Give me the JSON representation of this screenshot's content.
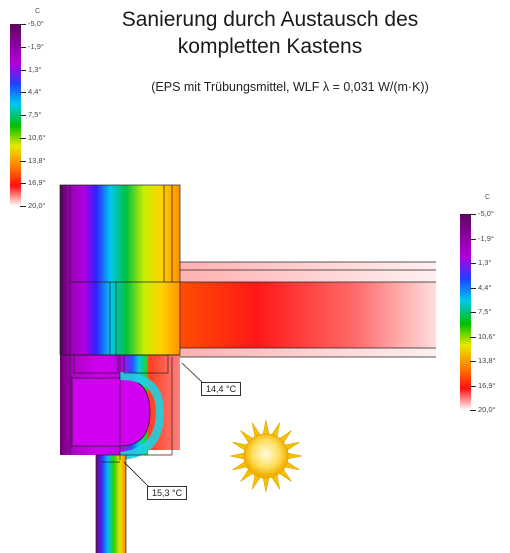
{
  "title": {
    "line1": "Sanierung durch Austausch des",
    "line2": "kompletten Kastens"
  },
  "subtitle": "(EPS mit Trübungsmittel, WLF λ = 0,031 W/(m·K))",
  "legend": {
    "unit": "C",
    "labels": [
      "-5,0°",
      "-1,9°",
      "1,3°",
      "4,4°",
      "7,5°",
      "10,6°",
      "13,8°",
      "16,9°",
      "20,0°"
    ],
    "colors": [
      "#5a0a5a",
      "#8a00a0",
      "#b000d8",
      "#2040ff",
      "#00c8f0",
      "#00c000",
      "#e8e800",
      "#ff8000",
      "#ff1010",
      "#ffffff"
    ]
  },
  "annotations": {
    "point1": "14,4 °C",
    "point2": "15,3 °C"
  },
  "icons": {
    "sun": "sun-icon"
  }
}
